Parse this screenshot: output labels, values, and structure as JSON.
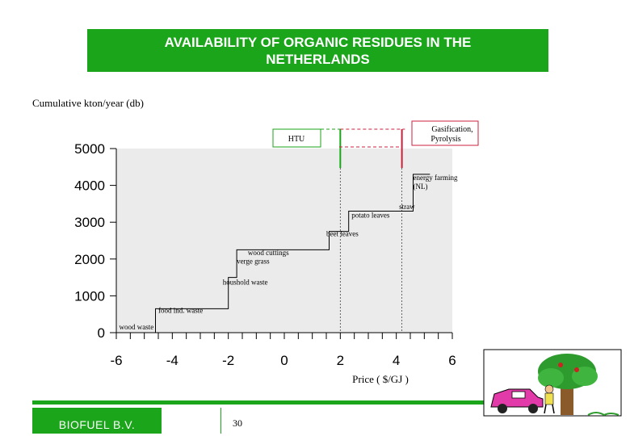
{
  "title": "AVAILABILITY OF ORGANIC RESIDUES IN THE NETHERLANDS",
  "footer": {
    "company": "BIOFUEL B.V.",
    "page_number": "30"
  },
  "chart_data": {
    "type": "line",
    "step": true,
    "ylabel": "Cumulative kton/year (db)",
    "xlabel": "Price  ( $/GJ )",
    "xlim": [
      -6,
      6
    ],
    "ylim": [
      0,
      5000
    ],
    "xticks": [
      "-6",
      "-4",
      "-2",
      "0",
      "2",
      "4",
      "6"
    ],
    "yticks": [
      "0",
      "1000",
      "2000",
      "3000",
      "4000",
      "5000"
    ],
    "series": [
      {
        "x": [
          -6.0,
          -4.6,
          -4.6,
          -2.0,
          -2.0,
          -1.7,
          -1.7,
          1.6,
          1.6,
          2.3,
          2.3,
          4.6,
          4.6,
          5.2
        ],
        "y": [
          0,
          0,
          650,
          650,
          1500,
          1500,
          2250,
          2250,
          2750,
          2750,
          3300,
          3300,
          4300,
          4300
        ]
      }
    ],
    "annotations": [
      {
        "text": "wood waste",
        "x": -5.9,
        "y": 90
      },
      {
        "text": "food ind. waste",
        "x": -4.5,
        "y": 540
      },
      {
        "text": "houshold waste",
        "x": -2.2,
        "y": 1310
      },
      {
        "text": "wood cuttings",
        "x": -1.3,
        "y": 2110
      },
      {
        "text": "verge grass",
        "x": -1.7,
        "y": 1880
      },
      {
        "text": "beet leaves",
        "x": 1.5,
        "y": 2620
      },
      {
        "text": "potato leaves",
        "x": 2.4,
        "y": 3120
      },
      {
        "text": "straw",
        "x": 4.1,
        "y": 3350
      },
      {
        "text": "energy farming",
        "x": 4.6,
        "y": 4140
      },
      {
        "text": "(NL)",
        "x": 4.6,
        "y": 3900
      }
    ],
    "processes": [
      {
        "label": "HTU",
        "x": 2.0,
        "color": "#1aa51a"
      },
      {
        "label": "Gasification, Pyrolysis",
        "x": 4.2,
        "color": "#cc1f3c"
      }
    ],
    "grid": false
  }
}
